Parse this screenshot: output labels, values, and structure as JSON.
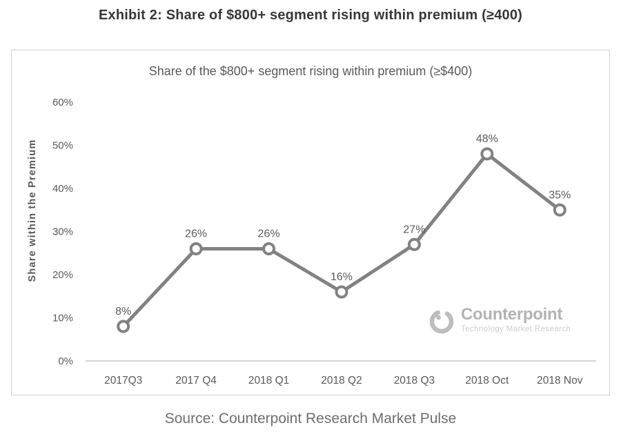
{
  "header": {
    "title": "Exhibit 2: Share of $800+ segment rising within premium (≥400)"
  },
  "chart_data": {
    "type": "line",
    "title": "Share of the $800+ segment rising within premium (≥$400)",
    "ylabel": "Share within the Premium",
    "xlabel": "",
    "categories": [
      "2017Q3",
      "2017 Q4",
      "2018 Q1",
      "2018 Q2",
      "2018 Q3",
      "2018 Oct",
      "2018 Nov"
    ],
    "values": [
      8,
      26,
      26,
      16,
      27,
      48,
      35
    ],
    "point_labels": [
      "8%",
      "26%",
      "26%",
      "16%",
      "27%",
      "48%",
      "35%"
    ],
    "ylim": [
      0,
      60
    ],
    "ytick_step": 10,
    "ytick_labels": [
      "0%",
      "10%",
      "20%",
      "30%",
      "40%",
      "50%",
      "60%"
    ],
    "grid": false,
    "legend": false,
    "line_color": "#828282",
    "marker": "open-circle",
    "marker_fill": "#ffffff",
    "axis_line_color": "#c6c6c6",
    "text_color": "#595959"
  },
  "logo": {
    "name": "Counterpoint",
    "tagline": "Technology Market Research"
  },
  "footer": {
    "source": "Source: Counterpoint Research Market Pulse"
  }
}
